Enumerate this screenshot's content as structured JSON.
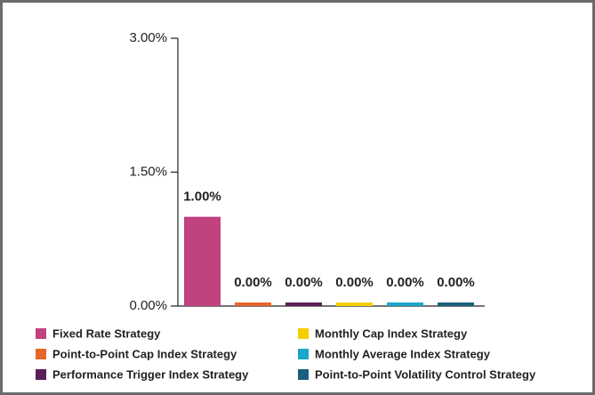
{
  "chart_data": {
    "type": "bar",
    "categories": [
      "Fixed Rate Strategy",
      "Point-to-Point Cap Index Strategy",
      "Performance Trigger Index Strategy",
      "Monthly Cap Index Strategy",
      "Monthly Average Index Strategy",
      "Point-to-Point Volatility Control Strategy"
    ],
    "values": [
      1,
      0,
      0,
      0,
      0,
      0
    ],
    "value_labels": [
      "1.00%",
      "0.00%",
      "0.00%",
      "0.00%",
      "0.00%",
      "0.00%"
    ],
    "colors": [
      "#c0427f",
      "#e5652b",
      "#5a1f5a",
      "#f5cf00",
      "#1ba6c9",
      "#1b5f7d"
    ],
    "ylim": [
      0,
      3
    ],
    "yticks": [
      {
        "value": 0,
        "label": "0.00%"
      },
      {
        "value": 1.5,
        "label": "1.50%"
      },
      {
        "value": 3,
        "label": "3.00%"
      }
    ]
  }
}
